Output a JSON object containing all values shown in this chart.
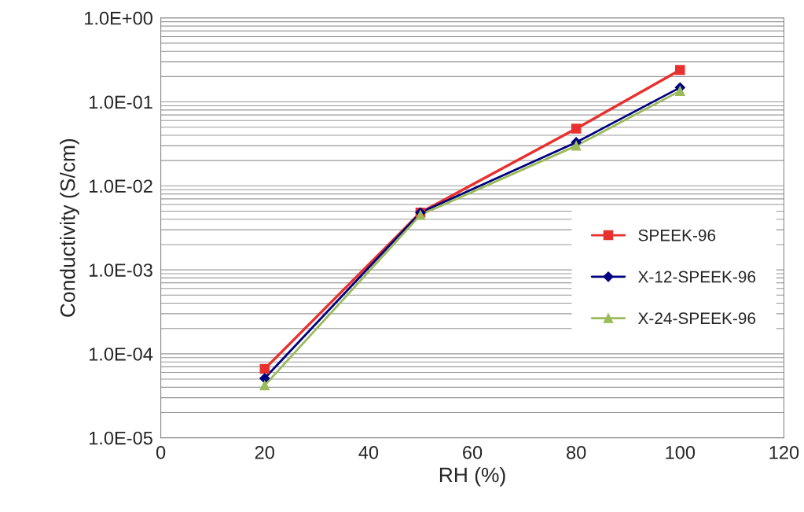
{
  "chart_data": {
    "type": "line",
    "xlabel": "RH (%)",
    "ylabel": "Conductivity (S/cm)",
    "x": [
      20,
      50,
      80,
      100
    ],
    "series": [
      {
        "name": "SPEEK-96",
        "color": "#e8312f",
        "marker": "square",
        "values": [
          6.6e-05,
          0.0048,
          0.048,
          0.24
        ]
      },
      {
        "name": "X-12-SPEEK-96",
        "color": "#000080",
        "marker": "diamond",
        "values": [
          5.1e-05,
          0.0048,
          0.033,
          0.148
        ]
      },
      {
        "name": "X-24-SPEEK-96",
        "color": "#9bbb59",
        "marker": "triangle",
        "values": [
          4.2e-05,
          0.0045,
          0.03,
          0.135
        ]
      }
    ],
    "log": "y",
    "xlim": [
      0,
      120
    ],
    "xticks": [
      0,
      20,
      40,
      60,
      80,
      100,
      120
    ],
    "ylim": [
      1e-05,
      1
    ],
    "yticks": [
      {
        "value": 1e-05,
        "label": "1.0E-05"
      },
      {
        "value": 0.0001,
        "label": "1.0E-04"
      },
      {
        "value": 0.001,
        "label": "1.0E-03"
      },
      {
        "value": 0.01,
        "label": "1.0E-02"
      },
      {
        "value": 0.1,
        "label": "1.0E-01"
      },
      {
        "value": 1,
        "label": "1.0E+00"
      }
    ],
    "grid": "y",
    "legend": "right",
    "line_style": "solid"
  }
}
